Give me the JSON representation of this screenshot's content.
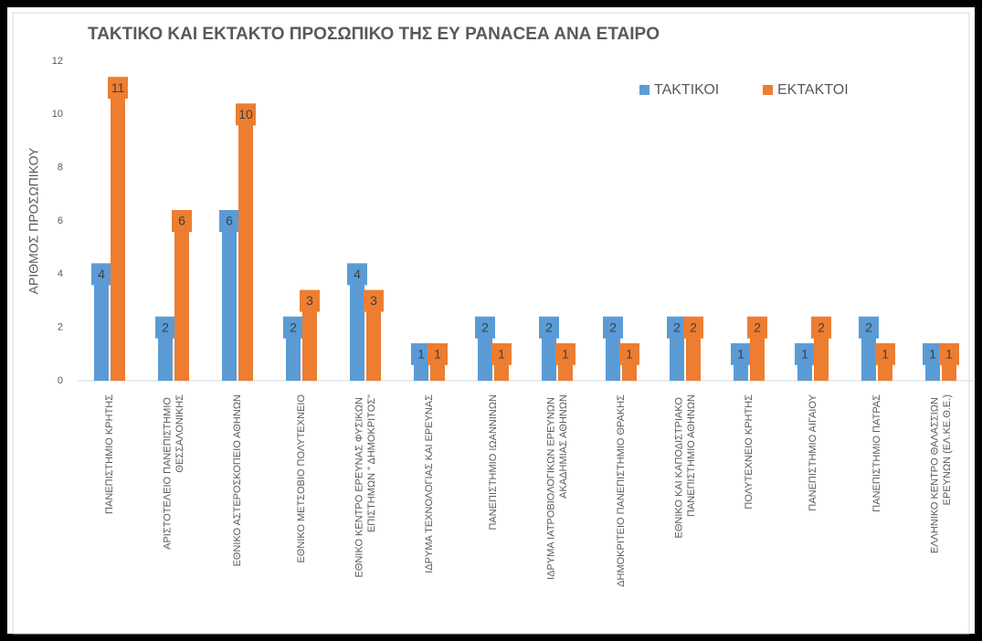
{
  "chart_data": {
    "type": "bar",
    "title": "ΤΑΚΤΙΚΟ ΚΑΙ ΕΚΤΑΚΤΟ ΠΡΟΣΩΠΙΚΟ ΤΗΣ ΕΥ PANACEA ΑΝΑ ΕΤΑΙΡΟ",
    "y_label": "ΑΡΙΘΜΟΣ ΠΡΟΣΩΠΙΚΟΥ",
    "categories": [
      "ΠΑΝΕΠΙΣΤΗΜΙΟ ΚΡΗΤΗΣ",
      "ΑΡΙΣΤΟΤΕΛΕΙΟ ΠΑΝΕΠΙΣΤΗΜΙΟ ΘΕΣΣΑΛΟΝΙΚΗΣ",
      "ΕΘΝΙΚΟ ΑΣΤΕΡΟΣΚΟΠΕΙΟ ΑΘΗΝΩΝ",
      "ΕΘΝΙΚΟ ΜΕΤΣΟΒΙΟ ΠΟΛΥΤΕΧΝΕΙΟ",
      "ΕΘΝΙΚΟ ΚΕΝΤΡΟ ΕΡΕΥΝΑΣ ΦΥΣΙΚΩΝ ΕΠΙΣΤΗΜΩΝ \" ΔΗΜΟΚΡΙΤΟΣ\"",
      "ΙΔΡΥΜΑ ΤΕΧΝΟΛΟΓΙΑΣ ΚΑΙ ΕΡΕΥΝΑΣ",
      "ΠΑΝΕΠΙΣΤΗΜΙΟ ΙΩΑΝΝΙΝΩΝ",
      "ΙΔΡΥΜΑ ΙΑΤΡΟΒΙΟΛΟΓΙΚΩΝ ΕΡΕΥΝΩΝ ΑΚΑΔΗΜΙΑΣ ΑΘΗΝΩΝ",
      "ΔΗΜΟΚΡΙΤΕΙΟ ΠΑΝΕΠΙΣΤΗΜΙΟ ΘΡΑΚΗΣ",
      "ΕΘΝΙΚΟ ΚΑΙ ΚΑΠΟΔΙΣΤΡΙΑΚΟ ΠΑΝΕΠΙΣΤΗΜΙΟ ΑΘΗΝΩΝ",
      "ΠΟΛΥΤΕΧΝΕΙΟ ΚΡΗΤΗΣ",
      "ΠΑΝΕΠΙΣΤΗΜΙΟ ΑΙΓΑΙΟΥ",
      "ΠΑΝΕΠΙΣΤΗΜΙΟ ΠΑΤΡΑΣ",
      "ΕΛΛΗΝΙΚΟ ΚΕΝΤΡΟ ΘΑΛΑΣΣΙΩΝ ΕΡΕΥΝΩΝ (ΕΛ.ΚΕ.Θ.Ε.)"
    ],
    "series": [
      {
        "name": "ΤΑΚΤΙΚΟΙ",
        "color": "#5b9bd5",
        "values": [
          4,
          2,
          6,
          2,
          4,
          1,
          2,
          2,
          2,
          2,
          1,
          1,
          2,
          1
        ]
      },
      {
        "name": "ΕΚΤΑΚΤΟΙ",
        "color": "#ed7d31",
        "values": [
          11,
          6,
          10,
          3,
          3,
          1,
          1,
          1,
          1,
          2,
          2,
          2,
          1,
          1
        ]
      }
    ],
    "ylim": [
      0,
      12
    ],
    "yticks": [
      0,
      2,
      4,
      6,
      8,
      10,
      12
    ],
    "grid": false,
    "legend": "top-right"
  }
}
